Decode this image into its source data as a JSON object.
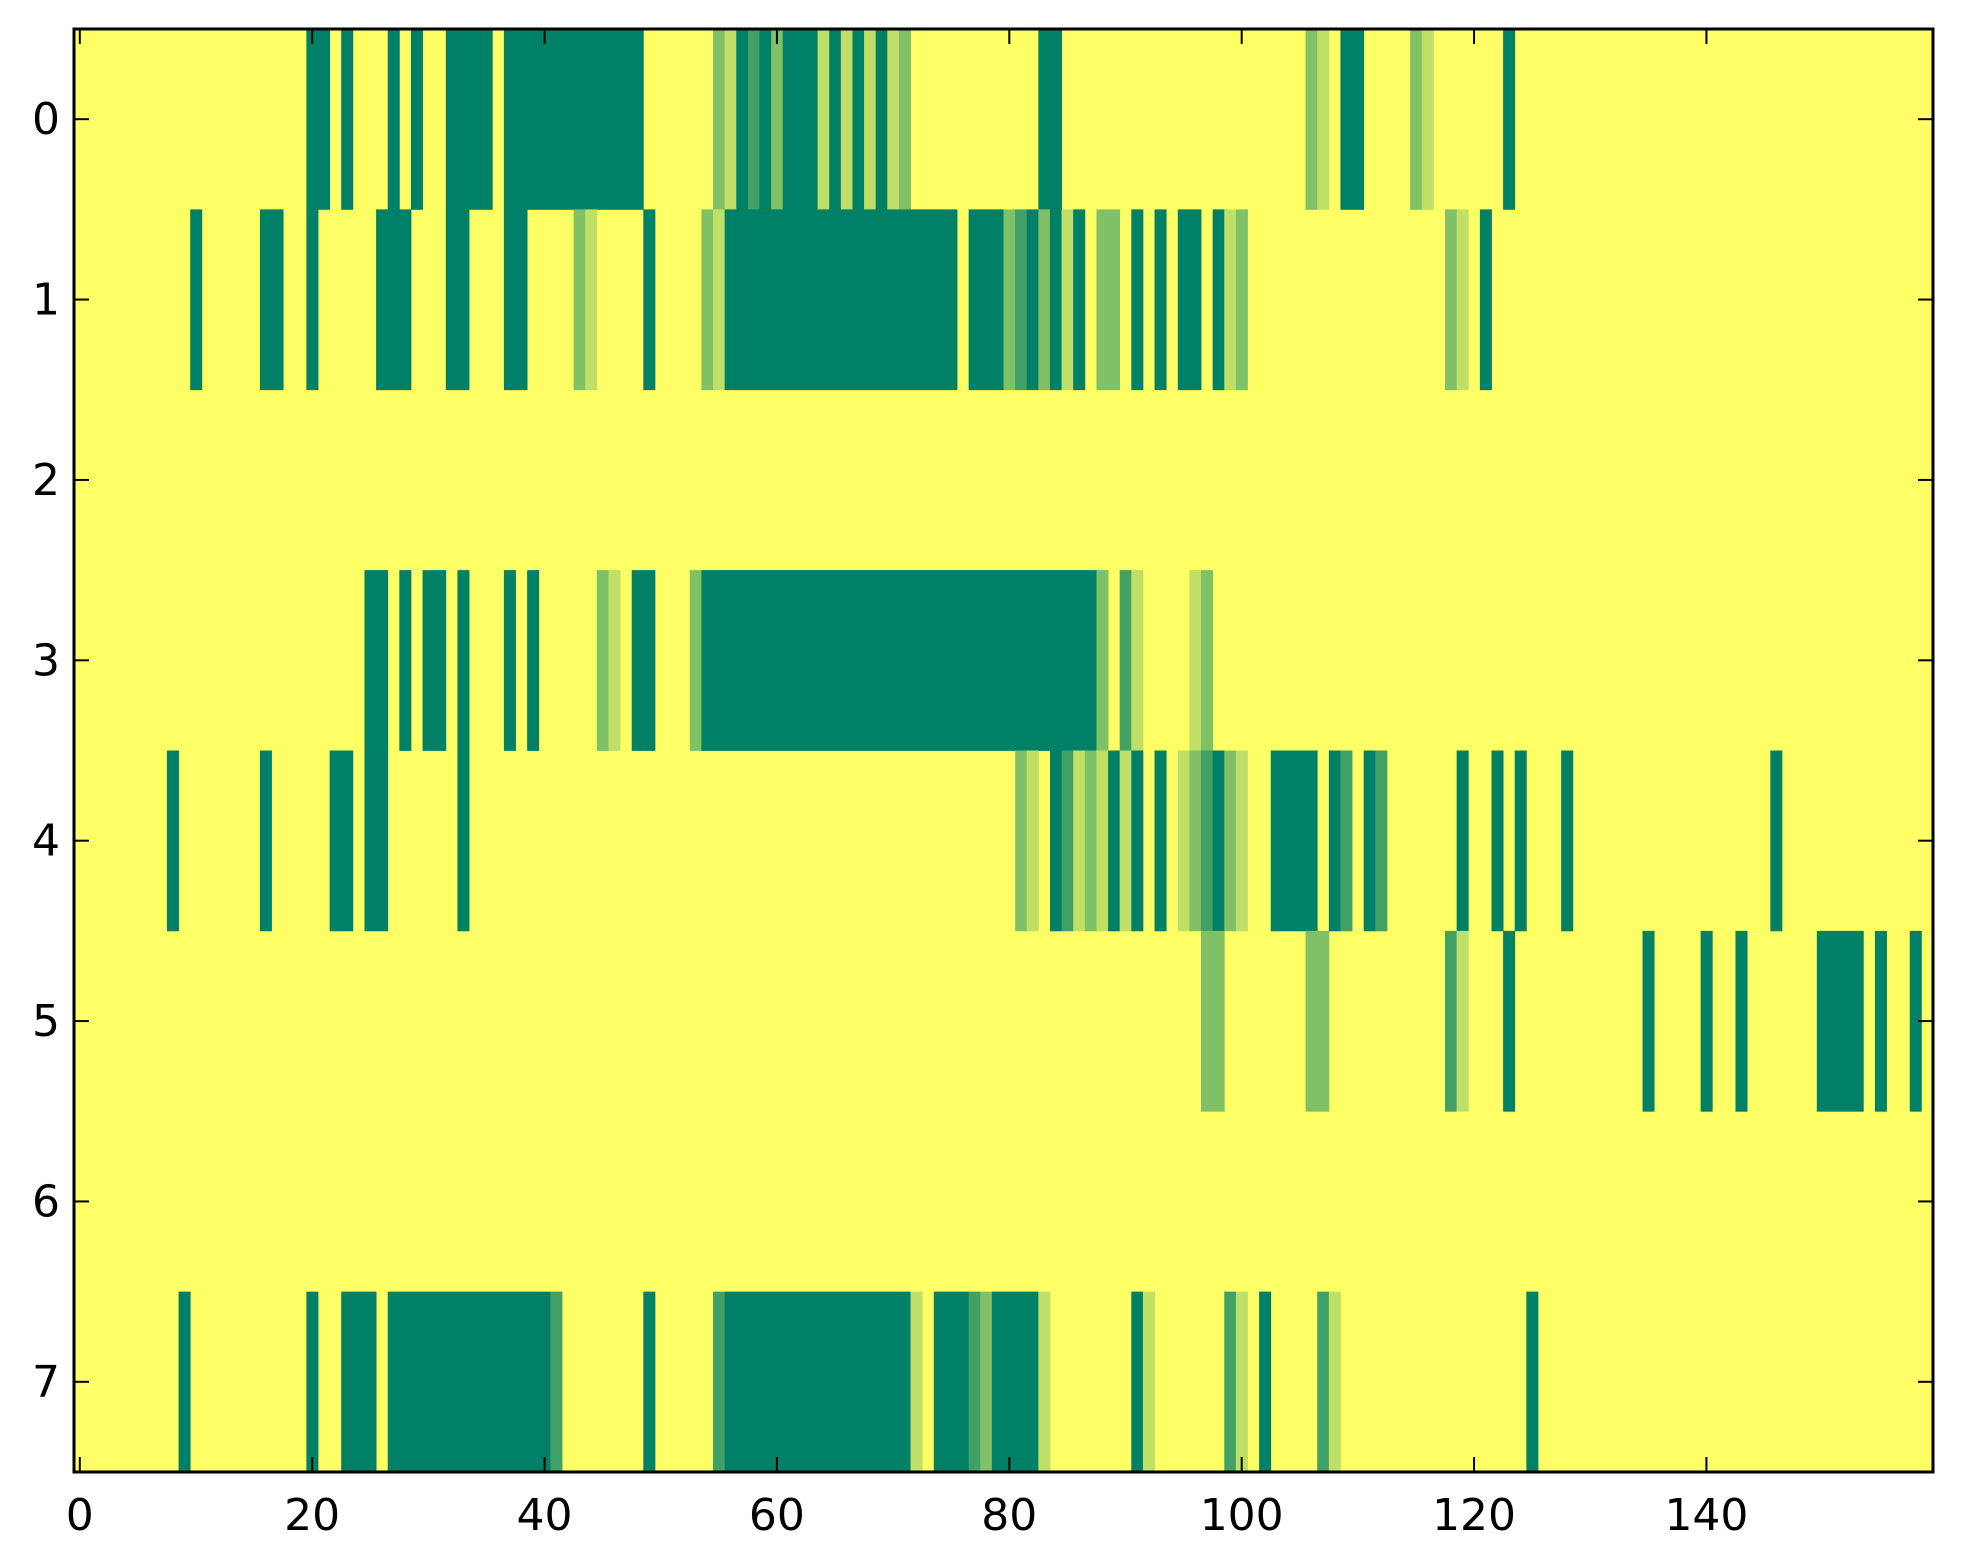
{
  "chart_data": {
    "type": "heatmap",
    "title": "",
    "xlabel": "",
    "ylabel": "",
    "xlim": [
      -0.5,
      159.5
    ],
    "ylim": [
      7.5,
      -0.5
    ],
    "rows": 8,
    "columns": 160,
    "x_ticks": [
      0,
      20,
      40,
      60,
      80,
      100,
      120,
      140
    ],
    "x_tick_labels": [
      "0",
      "20",
      "40",
      "60",
      "80",
      "100",
      "120",
      "140"
    ],
    "y_ticks": [
      0,
      1,
      2,
      3,
      4,
      5,
      6,
      7
    ],
    "y_tick_labels": [
      "0",
      "1",
      "2",
      "3",
      "4",
      "5",
      "6",
      "7"
    ],
    "colormap": "summer_r",
    "value_range": [
      0,
      1
    ],
    "background_value": 0,
    "colors": {
      "low": "#ffff66",
      "high": "#008066",
      "level_0_25": "#bfdf66",
      "level_0_5": "#80c066",
      "level_0_75": "#40a066"
    },
    "cells_note": "non-background cells as [column_start, column_end_inclusive, value] per row",
    "cells": [
      [
        [
          20,
          21,
          1.0
        ],
        [
          23,
          23,
          1.0
        ],
        [
          27,
          27,
          1.0
        ],
        [
          29,
          29,
          1.0
        ],
        [
          32,
          35,
          1.0
        ],
        [
          37,
          48,
          1.0
        ],
        [
          55,
          55,
          0.5
        ],
        [
          56,
          56,
          0.25
        ],
        [
          57,
          57,
          1.0
        ],
        [
          58,
          58,
          0.75
        ],
        [
          59,
          59,
          1.0
        ],
        [
          60,
          60,
          0.5
        ],
        [
          61,
          63,
          1.0
        ],
        [
          64,
          64,
          0.25
        ],
        [
          65,
          65,
          1.0
        ],
        [
          66,
          66,
          0.25
        ],
        [
          67,
          67,
          1.0
        ],
        [
          68,
          68,
          0.25
        ],
        [
          69,
          69,
          1.0
        ],
        [
          70,
          70,
          0.25
        ],
        [
          71,
          71,
          0.5
        ],
        [
          83,
          84,
          1.0
        ],
        [
          106,
          106,
          0.5
        ],
        [
          107,
          107,
          0.25
        ],
        [
          109,
          109,
          1.0
        ],
        [
          110,
          110,
          1.0
        ],
        [
          115,
          115,
          0.5
        ],
        [
          116,
          116,
          0.25
        ],
        [
          123,
          123,
          1.0
        ]
      ],
      [
        [
          10,
          10,
          1.0
        ],
        [
          16,
          17,
          1.0
        ],
        [
          20,
          20,
          1.0
        ],
        [
          26,
          28,
          1.0
        ],
        [
          32,
          33,
          1.0
        ],
        [
          37,
          38,
          1.0
        ],
        [
          43,
          43,
          0.5
        ],
        [
          44,
          44,
          0.25
        ],
        [
          49,
          49,
          1.0
        ],
        [
          54,
          54,
          0.5
        ],
        [
          55,
          55,
          0.25
        ],
        [
          56,
          56,
          1.0
        ],
        [
          57,
          75,
          1.0
        ],
        [
          77,
          79,
          1.0
        ],
        [
          80,
          80,
          0.5
        ],
        [
          81,
          81,
          0.75
        ],
        [
          82,
          82,
          1.0
        ],
        [
          83,
          83,
          0.5
        ],
        [
          84,
          84,
          1.0
        ],
        [
          85,
          85,
          0.25
        ],
        [
          86,
          86,
          1.0
        ],
        [
          88,
          89,
          0.5
        ],
        [
          91,
          91,
          1.0
        ],
        [
          93,
          93,
          1.0
        ],
        [
          95,
          96,
          1.0
        ],
        [
          98,
          98,
          1.0
        ],
        [
          99,
          99,
          0.25
        ],
        [
          100,
          100,
          0.5
        ],
        [
          118,
          118,
          0.5
        ],
        [
          119,
          119,
          0.25
        ],
        [
          121,
          121,
          1.0
        ]
      ],
      [],
      [
        [
          25,
          26,
          1.0
        ],
        [
          28,
          28,
          1.0
        ],
        [
          30,
          31,
          1.0
        ],
        [
          33,
          33,
          1.0
        ],
        [
          37,
          37,
          1.0
        ],
        [
          39,
          39,
          1.0
        ],
        [
          45,
          45,
          0.5
        ],
        [
          46,
          46,
          0.25
        ],
        [
          48,
          49,
          1.0
        ],
        [
          53,
          53,
          0.5
        ],
        [
          54,
          87,
          1.0
        ],
        [
          88,
          88,
          0.5
        ],
        [
          90,
          90,
          0.75
        ],
        [
          91,
          91,
          0.25
        ],
        [
          96,
          96,
          0.25
        ],
        [
          97,
          97,
          0.5
        ]
      ],
      [
        [
          8,
          8,
          1.0
        ],
        [
          16,
          16,
          1.0
        ],
        [
          22,
          23,
          1.0
        ],
        [
          25,
          26,
          1.0
        ],
        [
          33,
          33,
          1.0
        ],
        [
          81,
          81,
          0.5
        ],
        [
          82,
          82,
          0.25
        ],
        [
          84,
          84,
          1.0
        ],
        [
          85,
          85,
          0.75
        ],
        [
          86,
          86,
          0.25
        ],
        [
          87,
          87,
          0.5
        ],
        [
          88,
          88,
          0.25
        ],
        [
          89,
          89,
          1.0
        ],
        [
          90,
          90,
          0.25
        ],
        [
          91,
          91,
          1.0
        ],
        [
          93,
          93,
          1.0
        ],
        [
          95,
          95,
          0.25
        ],
        [
          96,
          96,
          0.5
        ],
        [
          97,
          97,
          0.75
        ],
        [
          98,
          98,
          1.0
        ],
        [
          99,
          99,
          0.5
        ],
        [
          100,
          100,
          0.25
        ],
        [
          103,
          106,
          1.0
        ],
        [
          108,
          108,
          1.0
        ],
        [
          109,
          109,
          0.75
        ],
        [
          111,
          111,
          1.0
        ],
        [
          112,
          112,
          0.75
        ],
        [
          119,
          119,
          1.0
        ],
        [
          122,
          122,
          1.0
        ],
        [
          124,
          124,
          1.0
        ],
        [
          128,
          128,
          1.0
        ],
        [
          146,
          146,
          1.0
        ]
      ],
      [
        [
          97,
          97,
          0.5
        ],
        [
          98,
          98,
          0.5
        ],
        [
          106,
          106,
          0.5
        ],
        [
          107,
          107,
          0.5
        ],
        [
          118,
          118,
          0.75
        ],
        [
          119,
          119,
          0.25
        ],
        [
          123,
          123,
          1.0
        ],
        [
          135,
          135,
          1.0
        ],
        [
          140,
          140,
          1.0
        ],
        [
          143,
          143,
          1.0
        ],
        [
          150,
          153,
          1.0
        ],
        [
          155,
          155,
          1.0
        ],
        [
          158,
          158,
          1.0
        ]
      ],
      [],
      [
        [
          9,
          9,
          1.0
        ],
        [
          20,
          20,
          1.0
        ],
        [
          23,
          25,
          1.0
        ],
        [
          27,
          40,
          1.0
        ],
        [
          41,
          41,
          0.75
        ],
        [
          49,
          49,
          1.0
        ],
        [
          55,
          55,
          0.75
        ],
        [
          56,
          71,
          1.0
        ],
        [
          72,
          72,
          0.25
        ],
        [
          74,
          76,
          1.0
        ],
        [
          77,
          77,
          0.75
        ],
        [
          78,
          78,
          0.5
        ],
        [
          79,
          82,
          1.0
        ],
        [
          83,
          83,
          0.25
        ],
        [
          91,
          91,
          1.0
        ],
        [
          92,
          92,
          0.25
        ],
        [
          99,
          99,
          0.75
        ],
        [
          100,
          100,
          0.25
        ],
        [
          102,
          102,
          1.0
        ],
        [
          107,
          107,
          0.75
        ],
        [
          108,
          108,
          0.25
        ],
        [
          125,
          125,
          1.0
        ]
      ]
    ]
  }
}
